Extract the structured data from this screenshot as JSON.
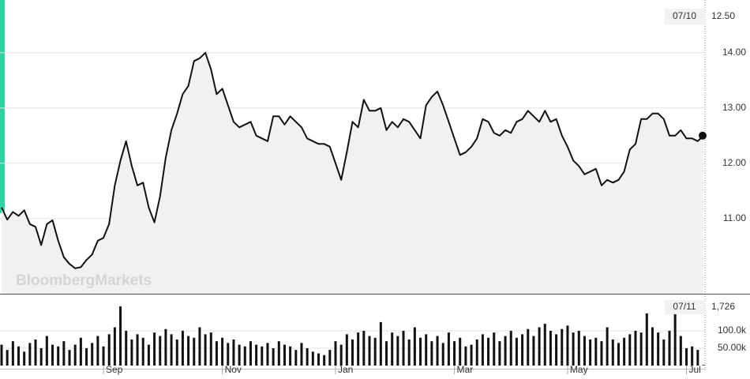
{
  "chart_data": [
    {
      "type": "line",
      "watermark": "BloombergMarkets",
      "last_date": "07/10",
      "last_label": "12.50",
      "xlim": [
        0,
        124
      ],
      "ylim": [
        9.64,
        14.84
      ],
      "yticks": [
        {
          "value": 11,
          "label": "11.00"
        },
        {
          "value": 12,
          "label": "12.00"
        },
        {
          "value": 13,
          "label": "13.00"
        },
        {
          "value": 14,
          "label": "14.00"
        }
      ],
      "grid": true,
      "series": [
        {
          "color": "#111111",
          "values": [
            11.2,
            10.98,
            11.12,
            11.05,
            11.15,
            10.9,
            10.85,
            10.52,
            10.9,
            10.97,
            10.6,
            10.3,
            10.18,
            10.1,
            10.12,
            10.25,
            10.35,
            10.6,
            10.65,
            10.9,
            11.6,
            12.05,
            12.4,
            11.95,
            11.6,
            11.65,
            11.2,
            10.93,
            11.4,
            12.1,
            12.6,
            12.9,
            13.25,
            13.4,
            13.85,
            13.9,
            14.0,
            13.7,
            13.25,
            13.35,
            13.05,
            12.75,
            12.65,
            12.7,
            12.75,
            12.5,
            12.45,
            12.4,
            12.85,
            12.85,
            12.7,
            12.85,
            12.75,
            12.65,
            12.45,
            12.4,
            12.35,
            12.35,
            12.3,
            12.0,
            11.7,
            12.2,
            12.75,
            12.65,
            13.15,
            12.95,
            12.95,
            13.0,
            12.6,
            12.75,
            12.65,
            12.8,
            12.75,
            12.6,
            12.45,
            13.05,
            13.2,
            13.3,
            13.05,
            12.75,
            12.45,
            12.15,
            12.2,
            12.3,
            12.45,
            12.8,
            12.75,
            12.55,
            12.5,
            12.6,
            12.55,
            12.75,
            12.8,
            12.95,
            12.85,
            12.75,
            12.95,
            12.75,
            12.8,
            12.5,
            12.3,
            12.05,
            11.95,
            11.8,
            11.85,
            11.9,
            11.6,
            11.7,
            11.65,
            11.7,
            11.85,
            12.25,
            12.35,
            12.8,
            12.8,
            12.9,
            12.9,
            12.8,
            12.5,
            12.5,
            12.6,
            12.45,
            12.45,
            12.4,
            12.5
          ]
        }
      ]
    },
    {
      "type": "bar",
      "last_date": "07/11",
      "last_label": "1,726",
      "xlim": [
        0,
        124
      ],
      "ylim": [
        0,
        202000
      ],
      "yticks": [
        {
          "value": 50000,
          "label": "50.00k"
        },
        {
          "value": 100000,
          "label": "100.0k"
        }
      ],
      "xticks": [
        {
          "value": 18,
          "label": "Sep"
        },
        {
          "value": 39,
          "label": "Nov"
        },
        {
          "value": 59,
          "label": "Jan"
        },
        {
          "value": 80,
          "label": "Mar"
        },
        {
          "value": 100,
          "label": "May"
        },
        {
          "value": 121,
          "label": "Jul"
        }
      ],
      "grid": true,
      "series": [
        {
          "color": "#111111",
          "values": [
            60000,
            45000,
            70000,
            55000,
            40000,
            65000,
            75000,
            50000,
            85000,
            60000,
            55000,
            70000,
            45000,
            60000,
            80000,
            50000,
            65000,
            85000,
            55000,
            90000,
            110000,
            170000,
            100000,
            75000,
            90000,
            80000,
            60000,
            95000,
            85000,
            105000,
            90000,
            75000,
            100000,
            85000,
            80000,
            110000,
            90000,
            95000,
            70000,
            80000,
            65000,
            75000,
            60000,
            55000,
            70000,
            60000,
            55000,
            65000,
            50000,
            70000,
            60000,
            55000,
            45000,
            65000,
            50000,
            40000,
            35000,
            30000,
            45000,
            70000,
            60000,
            90000,
            75000,
            95000,
            100000,
            85000,
            80000,
            125000,
            70000,
            95000,
            85000,
            100000,
            75000,
            110000,
            80000,
            90000,
            70000,
            85000,
            65000,
            95000,
            70000,
            80000,
            55000,
            60000,
            75000,
            90000,
            80000,
            95000,
            70000,
            85000,
            100000,
            80000,
            90000,
            105000,
            85000,
            110000,
            120000,
            100000,
            90000,
            105000,
            115000,
            95000,
            100000,
            85000,
            75000,
            80000,
            70000,
            110000,
            75000,
            65000,
            80000,
            90000,
            100000,
            95000,
            150000,
            110000,
            95000,
            75000,
            100000,
            150000,
            85000,
            50000,
            55000,
            45000,
            1726
          ]
        }
      ]
    }
  ]
}
